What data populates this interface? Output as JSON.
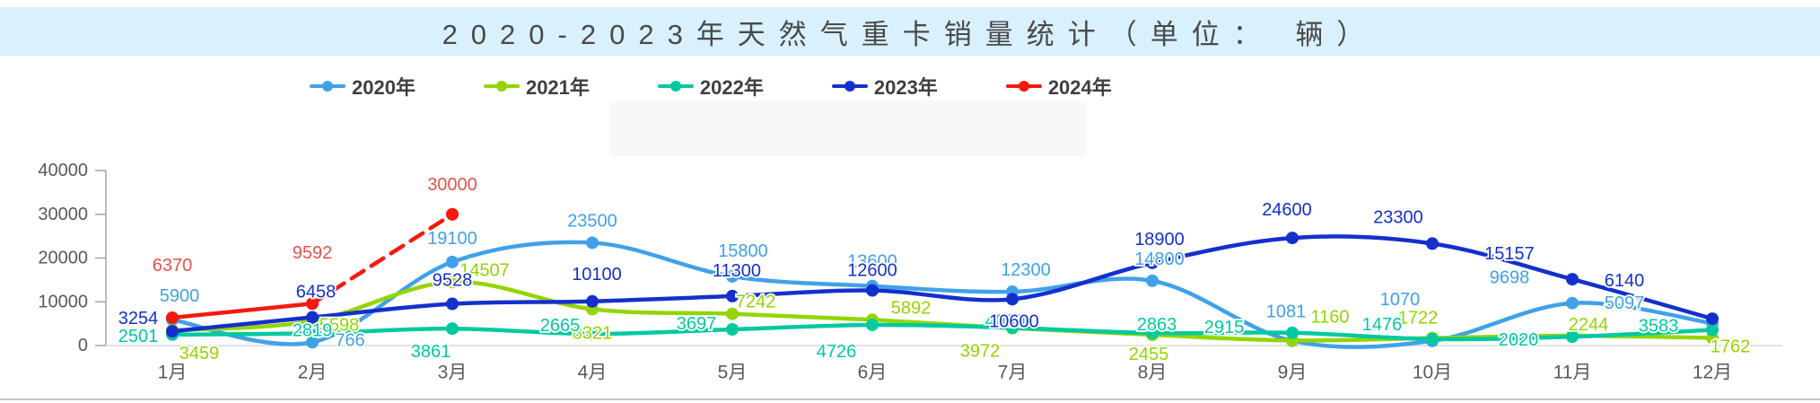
{
  "header": {
    "text": "2020-2023年天然气重卡销量统计（单位： 辆）",
    "bg_color": "#d9f1fd",
    "text_color": "#4a4a4a"
  },
  "legend": {
    "items": [
      {
        "label": "2020年",
        "color": "#41a1e8"
      },
      {
        "label": "2021年",
        "color": "#93d500"
      },
      {
        "label": "2022年",
        "color": "#00c9a0"
      },
      {
        "label": "2023年",
        "color": "#1430cc"
      },
      {
        "label": "2024年",
        "color": "#f5190f"
      }
    ]
  },
  "axis": {
    "ytick_labels": [
      "0",
      "10000",
      "20000",
      "30000",
      "40000"
    ],
    "tick_color": "#595959",
    "line_color": "#a6a6a6"
  },
  "chart_data": {
    "type": "line",
    "title": "2020-2023年天然气重卡销量统计（单位： 辆）",
    "xlabel": "",
    "ylabel": "",
    "ylim": [
      0,
      40000
    ],
    "yticks": [
      0,
      10000,
      20000,
      30000,
      40000
    ],
    "grid": false,
    "legend_position": "top",
    "categories": [
      "1月",
      "2月",
      "3月",
      "4月",
      "5月",
      "6月",
      "7月",
      "8月",
      "9月",
      "10月",
      "11月",
      "12月"
    ],
    "series": [
      {
        "name": "2020年",
        "color": "#41a1e8",
        "line": "solid",
        "values": [
          5900,
          766,
          19100,
          23500,
          15800,
          13600,
          12300,
          14800,
          1081,
          1070,
          9698,
          5097
        ]
      },
      {
        "name": "2021年",
        "color": "#93d500",
        "line": "solid",
        "values": [
          3459,
          5598,
          14507,
          8321,
          7242,
          5892,
          3972,
          2455,
          1160,
          1722,
          2244,
          1762
        ]
      },
      {
        "name": "2022年",
        "color": "#00c9a0",
        "line": "solid",
        "values": [
          2501,
          2819,
          3861,
          2665,
          3697,
          4726,
          4060,
          2863,
          2915,
          1476,
          2020,
          3583
        ]
      },
      {
        "name": "2023年",
        "color": "#1430cc",
        "line": "solid",
        "values": [
          3254,
          6458,
          9528,
          10100,
          11300,
          12600,
          10600,
          18900,
          24600,
          23300,
          15157,
          6140
        ]
      },
      {
        "name": "2024年",
        "color": "#f5190f",
        "label_color": "#e8514a",
        "line": "solid_then_dashed",
        "dashed_from_index": 1,
        "values": [
          6370,
          9592,
          30000
        ]
      }
    ]
  }
}
